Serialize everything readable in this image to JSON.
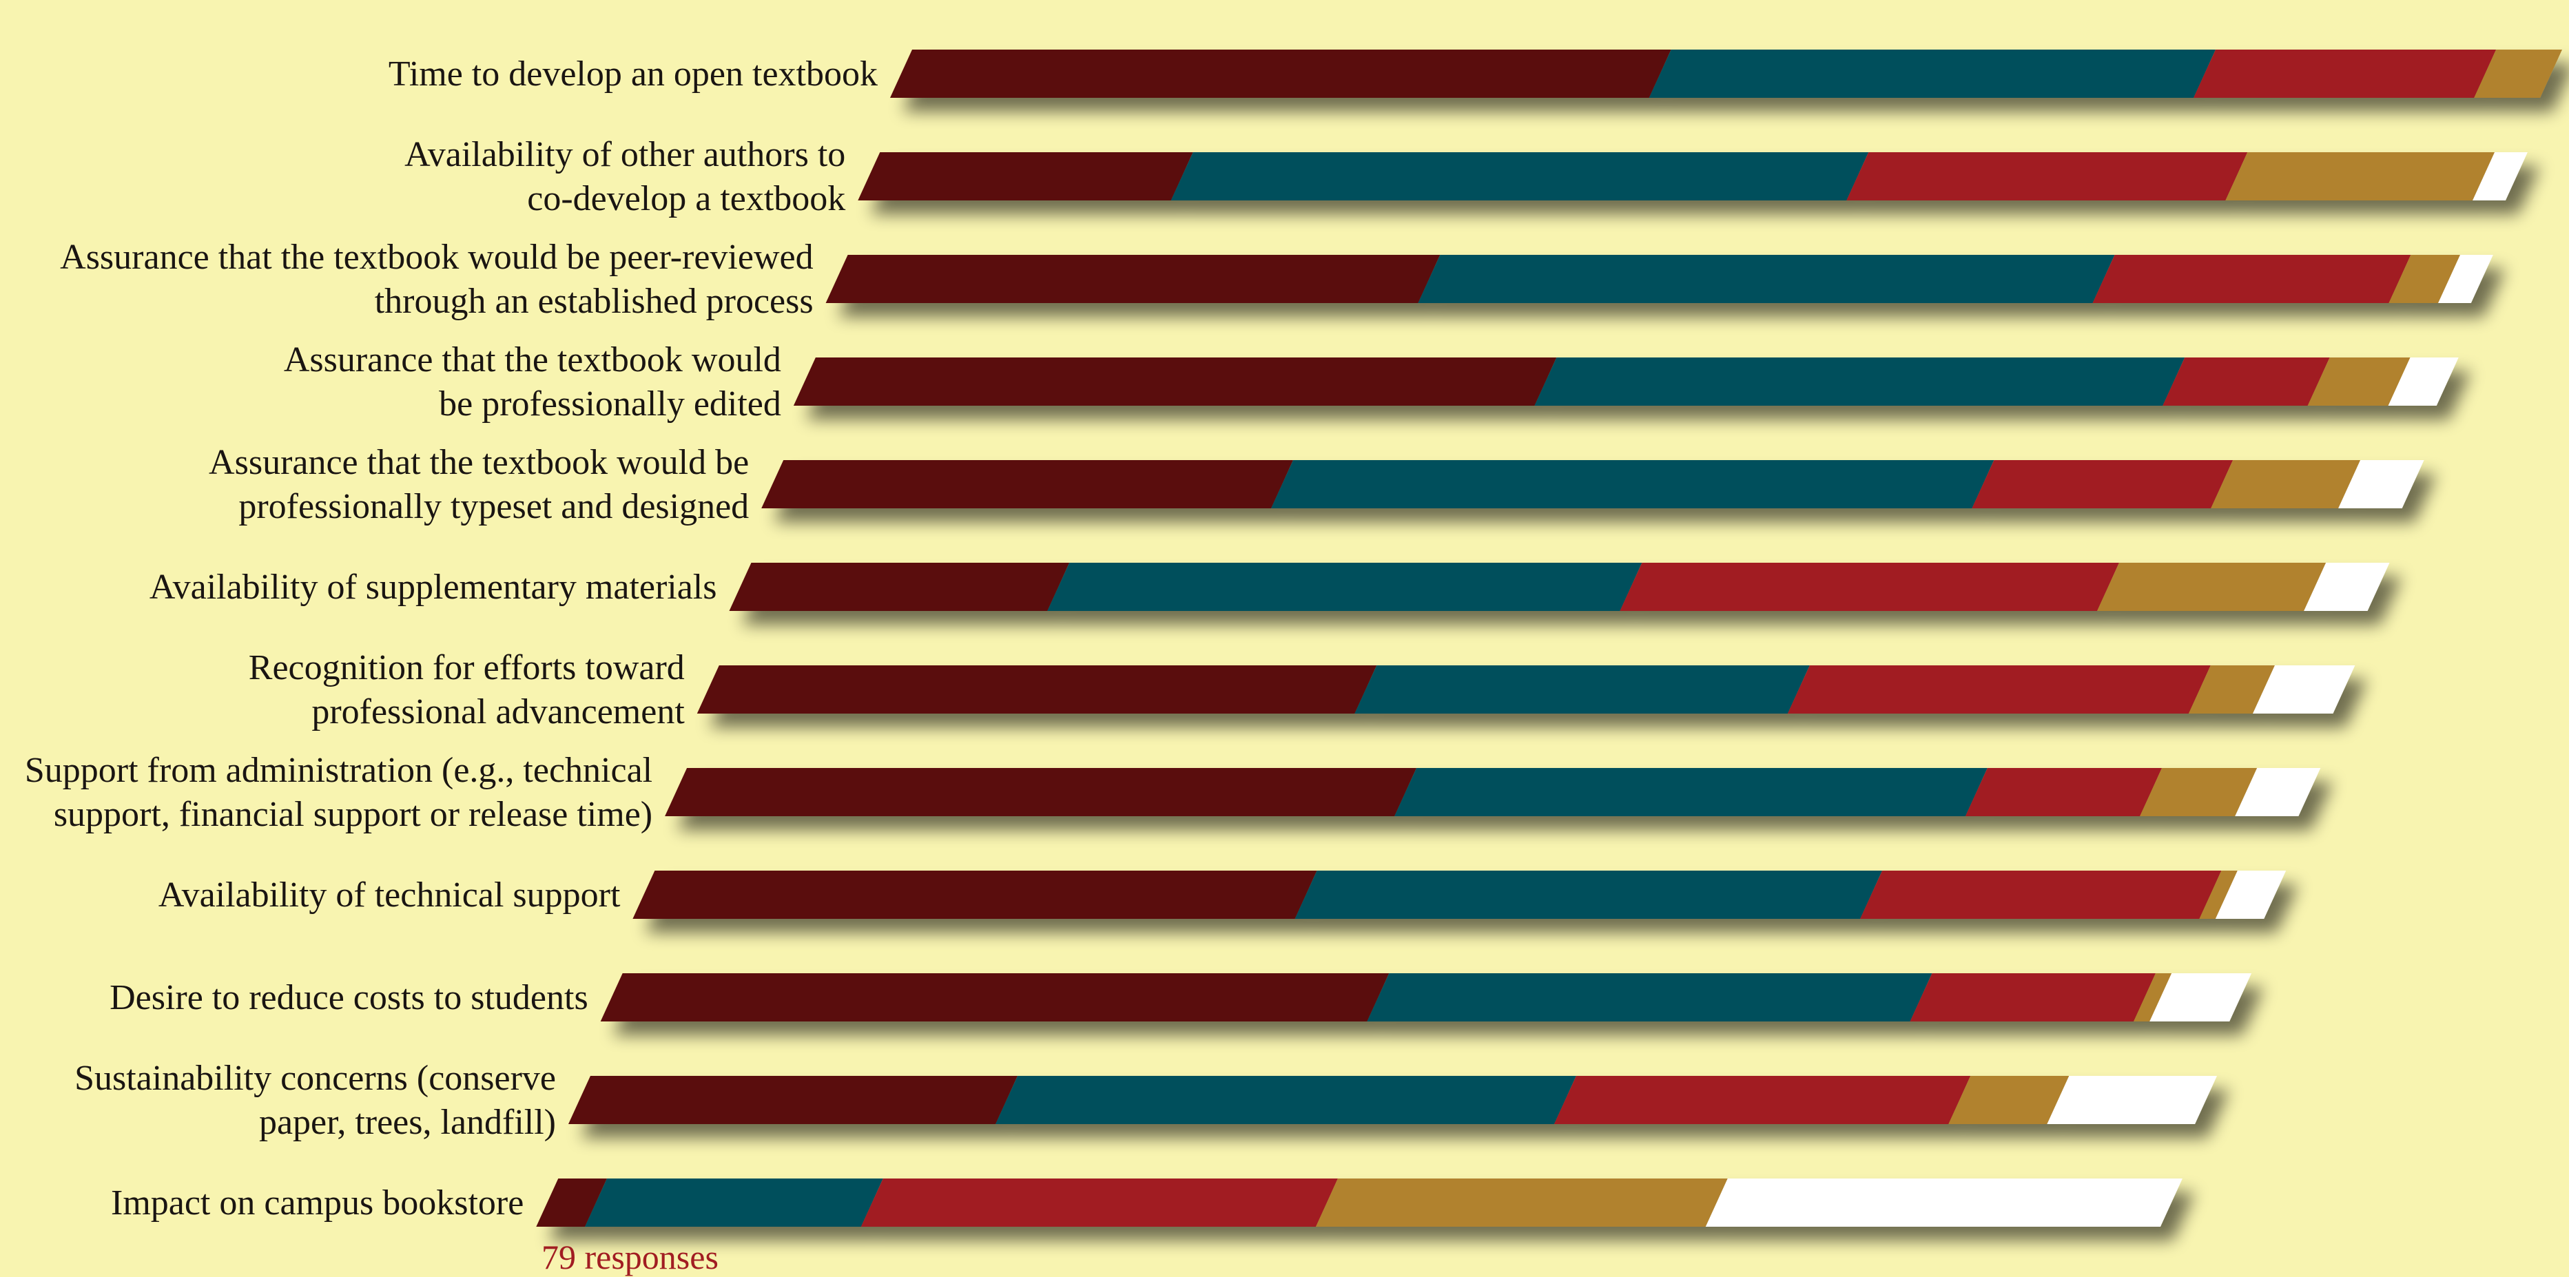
{
  "chart_data": {
    "type": "bar",
    "stacked": true,
    "orientation": "horizontal",
    "categories": [
      [
        "Time to develop an open textbook"
      ],
      [
        "Availability of other authors to",
        "co-develop a textbook"
      ],
      [
        "Assurance that the textbook would be peer-reviewed",
        "through an established process"
      ],
      [
        "Assurance that the textbook would",
        "be professionally edited"
      ],
      [
        "Assurance that the textbook would be",
        "professionally typeset and designed"
      ],
      [
        "Availability of supplementary materials"
      ],
      [
        "Recognition for efforts toward",
        "professional advancement"
      ],
      [
        "Support from administration (e.g., technical",
        "support, financial support or release time)"
      ],
      [
        "Availability of technical support"
      ],
      [
        "Desire to reduce costs to students"
      ],
      [
        "Sustainability concerns (conserve",
        "paper, trees, landfill)"
      ],
      [
        "Impact on campus bookstore"
      ]
    ],
    "series": [
      {
        "color": "#5a0d0e",
        "values": [
          46,
          19,
          36,
          46,
          32,
          20,
          41,
          46,
          41,
          48,
          26,
          3
        ]
      },
      {
        "color": "#034f5c",
        "values": [
          33,
          41,
          41,
          39,
          44,
          36,
          27,
          36,
          35,
          34,
          34,
          17
        ]
      },
      {
        "color": "#a11d22",
        "values": [
          17,
          23,
          18,
          9,
          15,
          30,
          25,
          11,
          21,
          14,
          24,
          28
        ]
      },
      {
        "color": "#b1822d",
        "values": [
          4,
          15,
          3,
          5,
          8,
          13,
          4,
          6,
          1,
          1,
          6,
          24
        ]
      },
      {
        "color": "#ffffff",
        "values": [
          0,
          2,
          2,
          3,
          4,
          4,
          5,
          4,
          3,
          5,
          9,
          28
        ]
      }
    ],
    "footnote": "79 responses",
    "footnote_color": "#a11d22",
    "background": "#f8f4b0"
  }
}
